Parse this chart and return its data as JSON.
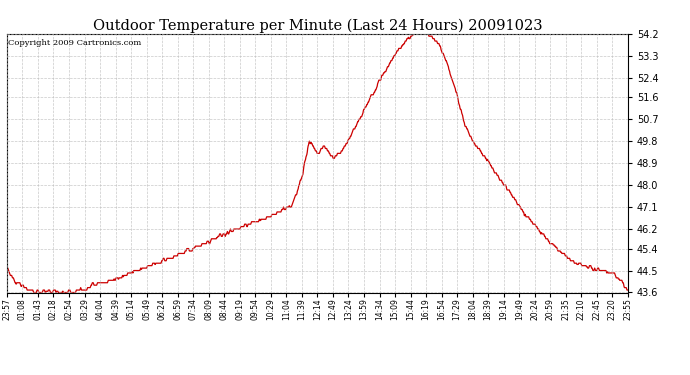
{
  "title": "Outdoor Temperature per Minute (Last 24 Hours) 20091023",
  "copyright_text": "Copyright 2009 Cartronics.com",
  "background_color": "#ffffff",
  "plot_bg_color": "#ffffff",
  "line_color": "#cc0000",
  "grid_color": "#bbbbbb",
  "y_min": 43.6,
  "y_max": 54.2,
  "y_ticks": [
    43.6,
    44.5,
    45.4,
    46.2,
    47.1,
    48.0,
    48.9,
    49.8,
    50.7,
    51.6,
    52.4,
    53.3,
    54.2
  ],
  "x_labels": [
    "23:57",
    "01:08",
    "01:43",
    "02:18",
    "02:54",
    "03:29",
    "04:04",
    "04:39",
    "05:14",
    "05:49",
    "06:24",
    "06:59",
    "07:34",
    "08:09",
    "08:44",
    "09:19",
    "09:54",
    "10:29",
    "11:04",
    "11:39",
    "12:14",
    "12:49",
    "13:24",
    "13:59",
    "14:34",
    "15:09",
    "15:44",
    "16:19",
    "16:54",
    "17:29",
    "18:04",
    "18:39",
    "19:14",
    "19:49",
    "20:24",
    "20:59",
    "21:35",
    "22:10",
    "22:45",
    "23:20",
    "23:55"
  ],
  "n_points": 1440,
  "figwidth": 6.9,
  "figheight": 3.75,
  "dpi": 100
}
